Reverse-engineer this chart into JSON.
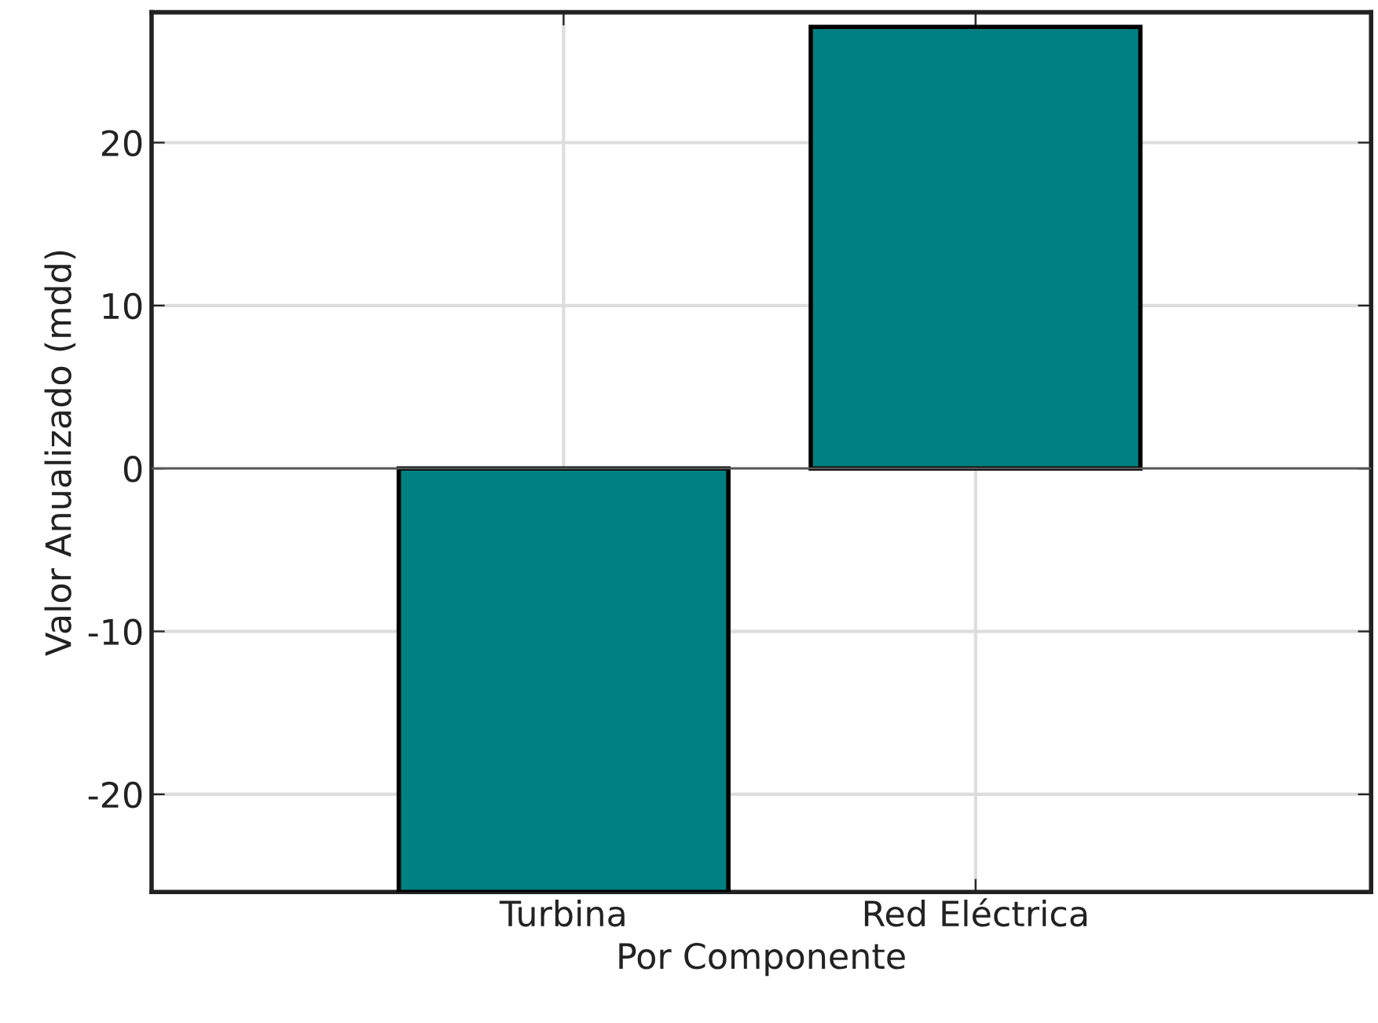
{
  "chart_data": {
    "type": "bar",
    "xlabel": "Por Componente",
    "ylabel": "Valor Anualizado (mdd)",
    "categories": [
      "Turbina",
      "Red Eléctrica"
    ],
    "values": [
      -26,
      27.1
    ],
    "color": "#008080",
    "ylim": [
      -26,
      28
    ],
    "yticks": [
      -20,
      -10,
      0,
      10,
      20
    ],
    "ref_lines": [
      {
        "axis": "y",
        "value": 0,
        "color": "#555555"
      }
    ],
    "grid": true
  }
}
